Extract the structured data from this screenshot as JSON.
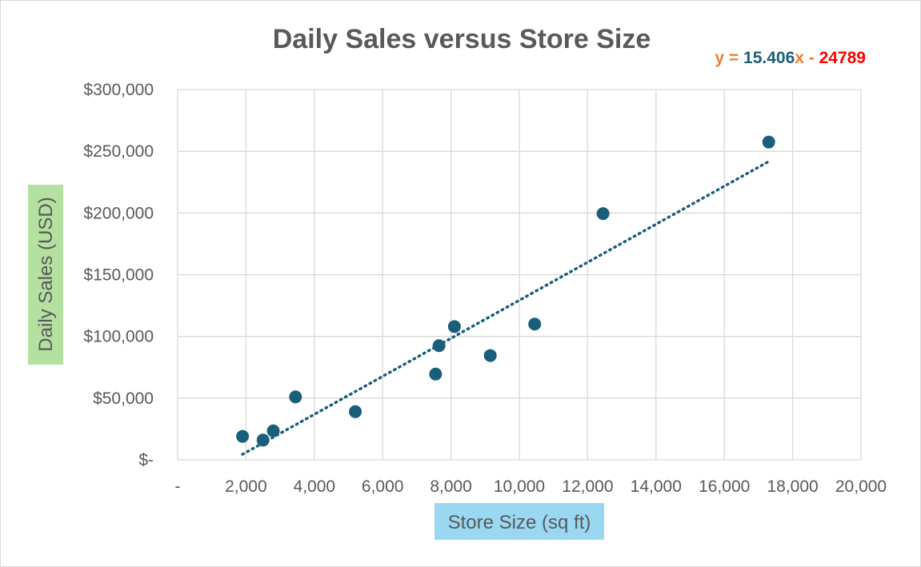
{
  "chart_data": {
    "type": "scatter",
    "title": "Daily Sales versus Store Size",
    "xlabel": "Store Size (sq ft)",
    "ylabel": "Daily Sales (USD)",
    "xlim": [
      0,
      20000
    ],
    "ylim": [
      0,
      300000
    ],
    "x_ticks": [
      0,
      2000,
      4000,
      6000,
      8000,
      10000,
      12000,
      14000,
      16000,
      18000,
      20000
    ],
    "x_tick_labels": [
      "-",
      "2,000",
      "4,000",
      "6,000",
      "8,000",
      "10,000",
      "12,000",
      "14,000",
      "16,000",
      "18,000",
      "20,000"
    ],
    "y_ticks": [
      0,
      50000,
      100000,
      150000,
      200000,
      250000,
      300000
    ],
    "y_tick_labels": [
      "$-",
      "$50,000",
      "$100,000",
      "$150,000",
      "$200,000",
      "$250,000",
      "$300,000"
    ],
    "grid": true,
    "legend": "none",
    "points": [
      {
        "x": 1900,
        "y": 19000
      },
      {
        "x": 2500,
        "y": 16000
      },
      {
        "x": 2800,
        "y": 23500
      },
      {
        "x": 3450,
        "y": 51000
      },
      {
        "x": 5200,
        "y": 39000
      },
      {
        "x": 7550,
        "y": 69500
      },
      {
        "x": 7650,
        "y": 92500
      },
      {
        "x": 8100,
        "y": 108000
      },
      {
        "x": 9150,
        "y": 84500
      },
      {
        "x": 10450,
        "y": 110000
      },
      {
        "x": 12450,
        "y": 199500
      },
      {
        "x": 17300,
        "y": 257500
      }
    ],
    "trendline": {
      "type": "linear",
      "slope": 15.406,
      "intercept": -24789,
      "x_start": 1900,
      "x_end": 17300,
      "style": "dotted",
      "equation": {
        "part_y": "y = ",
        "part_slope": "15.406",
        "part_x": "x - ",
        "part_intercept": "24789"
      }
    },
    "colors": {
      "marker": "#1a5f7a",
      "trendline": "#1a5f7a",
      "grid": "#d9d9d9",
      "eq_label": "#ed7d31",
      "eq_slope": "#1a5f7a",
      "eq_intercept": "#ff0000",
      "xlabel_bg": "#9ad8f2",
      "ylabel_bg": "#b4e0a0"
    }
  }
}
